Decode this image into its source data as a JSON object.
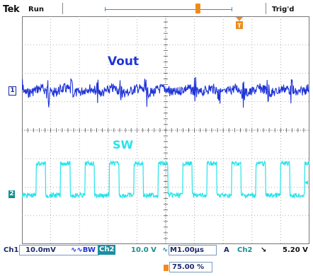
{
  "header": {
    "brand": "Tek",
    "run_state": "Run",
    "trigger_state": "Trig'd"
  },
  "waveforms": {
    "ch1_label": "Vout",
    "ch2_label": "SW",
    "ch1_marker": "1",
    "ch2_marker": "2"
  },
  "status": {
    "ch1_name": "Ch1",
    "ch1_scale": "10.0mV",
    "ch1_coupling": "∿∿BW",
    "ch2_name": "Ch2",
    "ch2_scale": "10.0 V",
    "ch2_coupling": "∿",
    "timebase_prefix": "M",
    "timebase": "1.00µs",
    "trigger_mode": "A",
    "trigger_source": "Ch2",
    "trigger_slope": "↘",
    "trigger_level": "5.20 V"
  },
  "horizontal": {
    "position": "75.00 %"
  },
  "colors": {
    "ch1": "#1f34d8",
    "ch2": "#26e3ea",
    "marker": "#f08a1e"
  }
}
